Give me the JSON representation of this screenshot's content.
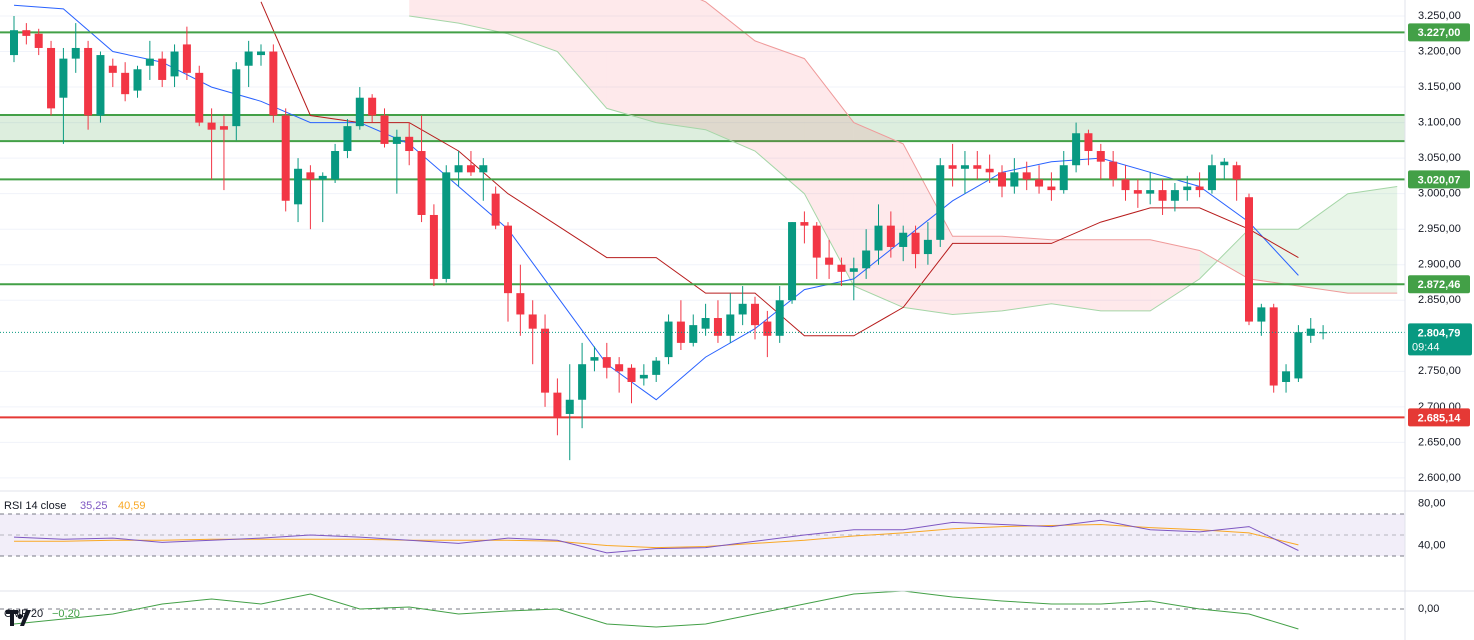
{
  "chart_data": [
    {
      "type": "candlestick",
      "up_color": "#089981",
      "down_color": "#f23645",
      "ylim": [
        2583,
        3272.5
      ],
      "yticks": [
        {
          "value": 3250,
          "label": "3.250,00"
        },
        {
          "value": 3200,
          "label": "3.200,00"
        },
        {
          "value": 3150,
          "label": "3.150,00"
        },
        {
          "value": 3100,
          "label": "3.100,00"
        },
        {
          "value": 3050,
          "label": "3.050,00"
        },
        {
          "value": 3000,
          "label": "3.000,00"
        },
        {
          "value": 2950,
          "label": "2.950,00"
        },
        {
          "value": 2900,
          "label": "2.900,00"
        },
        {
          "value": 2850,
          "label": "2.850,00"
        },
        {
          "value": 2750,
          "label": "2.750,00"
        },
        {
          "value": 2700,
          "label": "2.700,00"
        },
        {
          "value": 2650,
          "label": "2.650,00"
        },
        {
          "value": 2600,
          "label": "2.600,00"
        }
      ],
      "levels": [
        {
          "value": 3227,
          "label": "3.227,00",
          "color": "#43a047"
        },
        {
          "value": 3020.07,
          "label": "3.020,07",
          "color": "#43a047"
        },
        {
          "value": 2872.46,
          "label": "2.872,46",
          "color": "#43a047"
        },
        {
          "value": 2685.14,
          "label": "2.685,14",
          "color": "#e53935"
        }
      ],
      "zone": {
        "values": [
          3074,
          3110.7
        ],
        "color": "#43a047"
      },
      "last_price": {
        "value": 2804.79,
        "label": "2.804,79",
        "countdown": "09:44",
        "color": "#089981"
      },
      "candles": [
        [
          3195,
          3250,
          3185,
          3230
        ],
        [
          3230,
          3240,
          3210,
          3222
        ],
        [
          3225,
          3232,
          3195,
          3205
        ],
        [
          3205,
          3215,
          3110,
          3120
        ],
        [
          3135,
          3205,
          3070,
          3190
        ],
        [
          3190,
          3240,
          3170,
          3205
        ],
        [
          3205,
          3215,
          3090,
          3110
        ],
        [
          3110,
          3200,
          3100,
          3195
        ],
        [
          3180,
          3190,
          3150,
          3170
        ],
        [
          3170,
          3185,
          3130,
          3140
        ],
        [
          3145,
          3180,
          3135,
          3175
        ],
        [
          3180,
          3215,
          3160,
          3190
        ],
        [
          3190,
          3200,
          3150,
          3160
        ],
        [
          3165,
          3210,
          3150,
          3200
        ],
        [
          3210,
          3235,
          3160,
          3170
        ],
        [
          3170,
          3180,
          3095,
          3100
        ],
        [
          3100,
          3120,
          3020,
          3090
        ],
        [
          3095,
          3110,
          3005,
          3090
        ],
        [
          3095,
          3185,
          3075,
          3175
        ],
        [
          3180,
          3215,
          3150,
          3200
        ],
        [
          3195,
          3210,
          3180,
          3200
        ],
        [
          3200,
          3210,
          3100,
          3110
        ],
        [
          3110,
          3120,
          2975,
          2990
        ],
        [
          2985,
          3050,
          2960,
          3035
        ],
        [
          3030,
          3040,
          2950,
          3020
        ],
        [
          3020,
          3030,
          2960,
          3025
        ],
        [
          3020,
          3070,
          3015,
          3060
        ],
        [
          3060,
          3105,
          3050,
          3095
        ],
        [
          3095,
          3150,
          3090,
          3135
        ],
        [
          3135,
          3140,
          3100,
          3110
        ],
        [
          3110,
          3120,
          3065,
          3070
        ],
        [
          3070,
          3090,
          3000,
          3080
        ],
        [
          3080,
          3100,
          3040,
          3060
        ],
        [
          3060,
          3110,
          2960,
          2970
        ],
        [
          2970,
          2985,
          2870,
          2880
        ],
        [
          2880,
          3040,
          2875,
          3030
        ],
        [
          3030,
          3060,
          3010,
          3040
        ],
        [
          3040,
          3060,
          3025,
          3030
        ],
        [
          3030,
          3050,
          2990,
          3040
        ],
        [
          3000,
          3010,
          2950,
          2955
        ],
        [
          2955,
          2960,
          2820,
          2860
        ],
        [
          2860,
          2900,
          2800,
          2830
        ],
        [
          2830,
          2850,
          2760,
          2810
        ],
        [
          2810,
          2830,
          2700,
          2720
        ],
        [
          2720,
          2740,
          2660,
          2685
        ],
        [
          2690,
          2760,
          2625,
          2710
        ],
        [
          2710,
          2790,
          2670,
          2760
        ],
        [
          2765,
          2785,
          2750,
          2770
        ],
        [
          2770,
          2790,
          2740,
          2755
        ],
        [
          2760,
          2770,
          2720,
          2750
        ],
        [
          2755,
          2760,
          2705,
          2735
        ],
        [
          2740,
          2760,
          2730,
          2745
        ],
        [
          2745,
          2770,
          2735,
          2765
        ],
        [
          2770,
          2830,
          2760,
          2820
        ],
        [
          2820,
          2850,
          2780,
          2790
        ],
        [
          2790,
          2830,
          2785,
          2815
        ],
        [
          2810,
          2845,
          2800,
          2825
        ],
        [
          2825,
          2850,
          2790,
          2800
        ],
        [
          2800,
          2860,
          2790,
          2830
        ],
        [
          2830,
          2870,
          2815,
          2845
        ],
        [
          2845,
          2855,
          2795,
          2815
        ],
        [
          2820,
          2835,
          2770,
          2800
        ],
        [
          2800,
          2870,
          2790,
          2850
        ],
        [
          2850,
          2960,
          2845,
          2960
        ],
        [
          2960,
          2975,
          2930,
          2955
        ],
        [
          2955,
          2960,
          2880,
          2910
        ],
        [
          2910,
          2935,
          2880,
          2900
        ],
        [
          2900,
          2910,
          2870,
          2890
        ],
        [
          2890,
          2910,
          2850,
          2895
        ],
        [
          2895,
          2950,
          2880,
          2920
        ],
        [
          2920,
          2985,
          2900,
          2955
        ],
        [
          2955,
          2975,
          2910,
          2925
        ],
        [
          2925,
          2955,
          2905,
          2945
        ],
        [
          2945,
          2955,
          2895,
          2915
        ],
        [
          2915,
          2960,
          2900,
          2935
        ],
        [
          2935,
          3050,
          2925,
          3040
        ],
        [
          3040,
          3070,
          3010,
          3035
        ],
        [
          3035,
          3060,
          3000,
          3040
        ],
        [
          3040,
          3060,
          3020,
          3035
        ],
        [
          3035,
          3055,
          3015,
          3030
        ],
        [
          3030,
          3040,
          2995,
          3010
        ],
        [
          3010,
          3050,
          3000,
          3030
        ],
        [
          3030,
          3045,
          3005,
          3020
        ],
        [
          3020,
          3040,
          3000,
          3010
        ],
        [
          3010,
          3030,
          2990,
          3005
        ],
        [
          3005,
          3060,
          3000,
          3040
        ],
        [
          3040,
          3100,
          3030,
          3085
        ],
        [
          3085,
          3090,
          3040,
          3060
        ],
        [
          3060,
          3070,
          3020,
          3045
        ],
        [
          3045,
          3060,
          3010,
          3020
        ],
        [
          3020,
          3040,
          2990,
          3005
        ],
        [
          3005,
          3020,
          2980,
          3000
        ],
        [
          3000,
          3030,
          2985,
          3005
        ],
        [
          3005,
          3020,
          2970,
          2990
        ],
        [
          2990,
          3015,
          2975,
          3005
        ],
        [
          3005,
          3025,
          2990,
          3010
        ],
        [
          3010,
          3030,
          2995,
          3005
        ],
        [
          3005,
          3055,
          3000,
          3040
        ],
        [
          3040,
          3050,
          3020,
          3045
        ],
        [
          3040,
          3045,
          2990,
          3020
        ],
        [
          2995,
          3000,
          2815,
          2820
        ],
        [
          2820,
          2845,
          2800,
          2840
        ],
        [
          2840,
          2845,
          2720,
          2730
        ],
        [
          2735,
          2760,
          2720,
          2750
        ],
        [
          2740,
          2815,
          2735,
          2805
        ],
        [
          2800,
          2825,
          2790,
          2810
        ],
        [
          2805,
          2815,
          2795,
          2805
        ]
      ],
      "lines": [
        {
          "color": "#2962ff",
          "values": [
            3265,
            3260,
            3200,
            3185,
            3150,
            3130,
            3100,
            3100,
            3070,
            3010,
            2950,
            2855,
            2760,
            2710,
            2770,
            2810,
            2865,
            2880,
            2935,
            2990,
            3030,
            3045,
            3050,
            3030,
            3010,
            2960,
            2885
          ]
        },
        {
          "color": "#b71c1c",
          "values": [
            null,
            null,
            null,
            null,
            null,
            3270,
            3110,
            3100,
            3100,
            3060,
            3000,
            2955,
            2910,
            2910,
            2860,
            2860,
            2800,
            2800,
            2840,
            2930,
            2930,
            2930,
            2960,
            2980,
            2980,
            2950,
            2910
          ]
        }
      ],
      "cloud": {
        "span_a": {
          "color": "#a5d6a7",
          "values": [
            null,
            null,
            null,
            null,
            null,
            null,
            null,
            null,
            3250,
            3240,
            3225,
            3200,
            3120,
            3100,
            3090,
            3060,
            3000,
            2870,
            2840,
            2830,
            2835,
            2845,
            2835,
            2835,
            2880,
            2950,
            2950,
            3000,
            3010
          ]
        },
        "span_b": {
          "color": "#ef9a9a",
          "values": [
            null,
            null,
            null,
            null,
            null,
            null,
            null,
            null,
            3300,
            3300,
            3300,
            3300,
            3300,
            3300,
            3270,
            3215,
            3190,
            3100,
            3070,
            2940,
            2940,
            2935,
            2935,
            2935,
            2920,
            2880,
            2870,
            2860,
            2860
          ]
        }
      }
    },
    {
      "type": "line",
      "title": "RSI 14 close",
      "color": "#7e57c2",
      "ma_color": "#f9a825",
      "ylim": [
        0,
        90
      ],
      "yticks": [
        {
          "value": 80,
          "label": "80,00"
        },
        {
          "value": 40,
          "label": "40,00"
        }
      ],
      "bands": [
        30,
        50,
        70
      ],
      "legend": [
        {
          "value": 35.25,
          "label": "35,25"
        },
        {
          "value": 40.59,
          "label": "40,59"
        }
      ],
      "values": [
        48,
        46,
        47,
        43,
        45,
        47,
        50,
        48,
        45,
        42,
        47,
        45,
        33,
        37,
        38,
        44,
        50,
        55,
        55,
        62,
        60,
        58,
        64,
        55,
        53,
        58,
        35.25
      ],
      "ma": [
        44,
        44,
        45,
        45,
        46,
        46,
        46,
        46,
        45,
        45,
        45,
        44,
        40,
        38,
        39,
        42,
        45,
        49,
        52,
        56,
        58,
        59,
        60,
        57,
        55,
        52,
        40.59
      ]
    },
    {
      "type": "line",
      "title": "CMF 20",
      "color": "#43a047",
      "ylim": [
        -0.31,
        0.21
      ],
      "yticks": [
        {
          "value": 0,
          "label": "0,00"
        }
      ],
      "legend": {
        "value": -0.2,
        "label": "−0,20"
      },
      "values": [
        -0.15,
        -0.1,
        -0.05,
        0.05,
        0.1,
        0.05,
        0.15,
        0,
        0.02,
        -0.05,
        -0.02,
        0,
        -0.15,
        -0.18,
        -0.15,
        -0.05,
        0.05,
        0.15,
        0.18,
        0.12,
        0.08,
        0.05,
        0.05,
        0.08,
        0,
        -0.05,
        -0.2
      ]
    }
  ]
}
